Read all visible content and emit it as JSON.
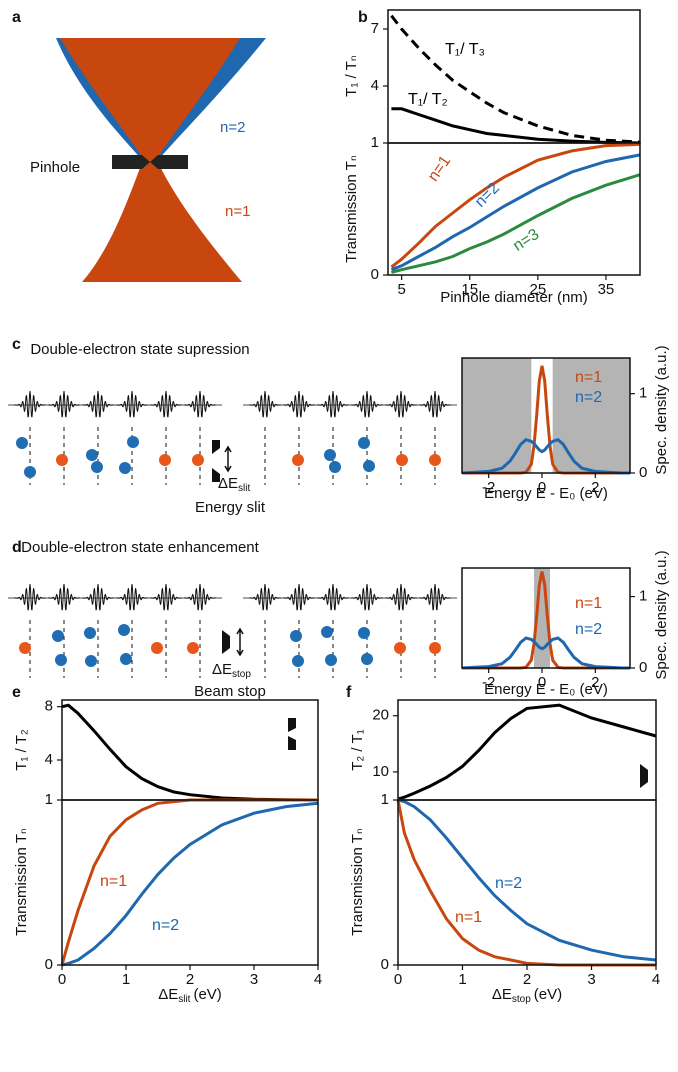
{
  "panels": {
    "a": {
      "label": "a",
      "pinhole": "Pinhole",
      "n2": "n=2",
      "n1": "n=1"
    },
    "b": {
      "label": "b"
    },
    "c": {
      "label": "c",
      "title": "Double-electron state supression",
      "delta": "ΔE",
      "delta_sub": "slit",
      "caption": "Energy slit"
    },
    "d": {
      "label": "d",
      "title": "Double-electron state enhancement",
      "delta": "ΔE",
      "delta_sub": "stop",
      "caption": "Beam stop"
    },
    "e": {
      "label": "e"
    },
    "f": {
      "label": "f"
    }
  },
  "chart_data": [
    {
      "type": "line",
      "ylabel": "T₁ / Tₙ",
      "xlim": [
        3,
        40
      ],
      "ylim": [
        1,
        8
      ],
      "yticks": [
        4,
        7
      ],
      "x": [
        3.5,
        5,
        7.5,
        10,
        12.5,
        15,
        17.5,
        20,
        25,
        30,
        35,
        40
      ],
      "series": [
        {
          "name": "T₁/ T₃",
          "color": "#000000",
          "dashed": true,
          "values": [
            7.7,
            7.0,
            6.0,
            5.1,
            4.3,
            3.7,
            3.1,
            2.6,
            1.9,
            1.4,
            1.15,
            1.05
          ]
        },
        {
          "name": "T₁/ T₂",
          "color": "#000000",
          "values": [
            2.8,
            2.8,
            2.5,
            2.2,
            1.9,
            1.7,
            1.5,
            1.4,
            1.2,
            1.1,
            1.03,
            1.0
          ]
        }
      ]
    },
    {
      "type": "line",
      "ylabel": "Transmission Tₙ",
      "xlabel": "Pinhole diameter (nm)",
      "xlim": [
        3,
        40
      ],
      "ylim": [
        0,
        1
      ],
      "xticks": [
        5,
        15,
        25,
        35
      ],
      "yticks": [
        0,
        1
      ],
      "x": [
        3.5,
        5,
        7.5,
        10,
        12.5,
        15,
        17.5,
        20,
        25,
        30,
        35,
        40
      ],
      "series": [
        {
          "name": "n=1",
          "color": "#c8470f",
          "values": [
            0.06,
            0.12,
            0.24,
            0.37,
            0.47,
            0.57,
            0.66,
            0.74,
            0.87,
            0.94,
            0.98,
            0.99
          ]
        },
        {
          "name": "n=2",
          "color": "#1f68b0",
          "values": [
            0.04,
            0.07,
            0.14,
            0.21,
            0.29,
            0.36,
            0.44,
            0.52,
            0.66,
            0.78,
            0.86,
            0.91
          ]
        },
        {
          "name": "n=3",
          "color": "#2a8a3e",
          "values": [
            0.02,
            0.04,
            0.07,
            0.1,
            0.14,
            0.2,
            0.25,
            0.31,
            0.45,
            0.58,
            0.68,
            0.76
          ]
        }
      ]
    },
    {
      "type": "line",
      "ylabel": "Spec. density (a.u.)",
      "xlabel": "Energy E - E₀ (eV)",
      "xlim": [
        -3,
        3.3
      ],
      "ylim": [
        0,
        1.45
      ],
      "xticks": [
        -2,
        0,
        2
      ],
      "yticks": [
        0,
        1
      ],
      "shaded": [
        [
          -3,
          -0.4
        ],
        [
          0.4,
          3.3
        ]
      ],
      "x": [
        -3,
        -2.5,
        -2,
        -1.5,
        -1.2,
        -1,
        -0.8,
        -0.6,
        -0.4,
        -0.3,
        -0.2,
        -0.1,
        0,
        0.1,
        0.2,
        0.3,
        0.4,
        0.6,
        0.8,
        1,
        1.2,
        1.5,
        2,
        2.5,
        3,
        3.3
      ],
      "series": [
        {
          "name": "n=1",
          "color": "#c8470f",
          "values": [
            0,
            0,
            0,
            0,
            0,
            0,
            0,
            0.01,
            0.11,
            0.34,
            0.73,
            1.16,
            1.35,
            1.16,
            0.73,
            0.34,
            0.11,
            0.01,
            0,
            0,
            0,
            0,
            0,
            0,
            0,
            0
          ]
        },
        {
          "name": "n=2",
          "color": "#1f68b0",
          "values": [
            0,
            0.01,
            0.02,
            0.06,
            0.15,
            0.25,
            0.36,
            0.42,
            0.4,
            0.37,
            0.33,
            0.29,
            0.27,
            0.29,
            0.33,
            0.37,
            0.4,
            0.42,
            0.36,
            0.25,
            0.15,
            0.06,
            0.02,
            0.01,
            0,
            0
          ]
        }
      ]
    },
    {
      "type": "line",
      "ylabel": "Spec. density (a.u.)",
      "xlabel": "Energy E - E₀ (eV)",
      "xlim": [
        -3,
        3.3
      ],
      "ylim": [
        0,
        1.4
      ],
      "xticks": [
        -2,
        0,
        2
      ],
      "yticks": [
        0,
        1
      ],
      "shaded": [
        [
          -0.3,
          0.3
        ]
      ],
      "x": [
        -3,
        -2.5,
        -2,
        -1.5,
        -1.2,
        -1,
        -0.8,
        -0.6,
        -0.4,
        -0.3,
        -0.2,
        -0.1,
        0,
        0.1,
        0.2,
        0.3,
        0.4,
        0.6,
        0.8,
        1,
        1.2,
        1.5,
        2,
        2.5,
        3,
        3.3
      ],
      "series": [
        {
          "name": "n=1",
          "color": "#c8470f",
          "values": [
            0,
            0,
            0,
            0,
            0,
            0,
            0,
            0.01,
            0.11,
            0.34,
            0.73,
            1.16,
            1.35,
            1.16,
            0.73,
            0.34,
            0.11,
            0.01,
            0,
            0,
            0,
            0,
            0,
            0,
            0,
            0
          ]
        },
        {
          "name": "n=2",
          "color": "#1f68b0",
          "values": [
            0,
            0.01,
            0.02,
            0.06,
            0.15,
            0.25,
            0.36,
            0.42,
            0.4,
            0.37,
            0.33,
            0.29,
            0.27,
            0.29,
            0.33,
            0.37,
            0.4,
            0.42,
            0.36,
            0.25,
            0.15,
            0.06,
            0.02,
            0.01,
            0,
            0
          ]
        }
      ]
    },
    {
      "type": "line",
      "ylabel": "T₁ / T₂",
      "xlim": [
        0,
        4
      ],
      "ylim": [
        1,
        8.5
      ],
      "yticks": [
        4,
        8
      ],
      "x": [
        0,
        0.1,
        0.25,
        0.5,
        0.75,
        1,
        1.25,
        1.5,
        1.75,
        2,
        2.5,
        3,
        3.5,
        4
      ],
      "series": [
        {
          "color": "#000000",
          "values": [
            8.0,
            8.1,
            7.5,
            6.2,
            4.8,
            3.5,
            2.6,
            2.0,
            1.6,
            1.4,
            1.15,
            1.05,
            1.02,
            1.0
          ]
        }
      ]
    },
    {
      "type": "line",
      "ylabel": "Transmission Tₙ",
      "xlabel": "ΔE",
      "xlabel_sub": "slit",
      "xlabel_unit": "(eV)",
      "xlim": [
        0,
        4
      ],
      "ylim": [
        0,
        1
      ],
      "xticks": [
        0,
        1,
        2,
        3,
        4
      ],
      "yticks": [
        0,
        1
      ],
      "x": [
        0,
        0.1,
        0.25,
        0.5,
        0.75,
        1,
        1.25,
        1.5,
        1.75,
        2,
        2.5,
        3,
        3.5,
        4
      ],
      "series": [
        {
          "name": "n=1",
          "color": "#c8470f",
          "values": [
            0,
            0.14,
            0.33,
            0.6,
            0.78,
            0.88,
            0.94,
            0.98,
            0.99,
            1,
            1,
            1,
            1,
            1
          ]
        },
        {
          "name": "n=2",
          "color": "#1f68b0",
          "values": [
            0,
            0.01,
            0.03,
            0.1,
            0.19,
            0.3,
            0.43,
            0.55,
            0.65,
            0.73,
            0.85,
            0.92,
            0.96,
            0.98
          ]
        }
      ]
    },
    {
      "type": "line",
      "ylabel": "T₂ / T₁",
      "xlim": [
        0,
        4
      ],
      "ylim": [
        5,
        22.8
      ],
      "yticks": [
        10,
        20
      ],
      "x": [
        0,
        0.1,
        0.25,
        0.5,
        0.75,
        1,
        1.25,
        1.5,
        1.75,
        2,
        2.5,
        3,
        3.5,
        4
      ],
      "series": [
        {
          "color": "#000000",
          "values": [
            5.2,
            5.5,
            6.2,
            7.5,
            9,
            11,
            13.8,
            17,
            19.5,
            21.3,
            21.9,
            19.6,
            18,
            16.4
          ]
        }
      ]
    },
    {
      "type": "line",
      "ylabel": "Transmission Tₙ",
      "xlabel": "ΔE",
      "xlabel_sub": "stop",
      "xlabel_unit": "(eV)",
      "xlim": [
        0,
        4
      ],
      "ylim": [
        0,
        1
      ],
      "xticks": [
        0,
        1,
        2,
        3,
        4
      ],
      "yticks": [
        0,
        1
      ],
      "x": [
        0,
        0.1,
        0.25,
        0.5,
        0.75,
        1,
        1.25,
        1.5,
        1.75,
        2,
        2.5,
        3,
        3.5,
        4
      ],
      "series": [
        {
          "name": "n=1",
          "color": "#c8470f",
          "values": [
            1,
            0.8,
            0.64,
            0.45,
            0.28,
            0.16,
            0.09,
            0.05,
            0.03,
            0.01,
            0,
            0,
            0,
            0
          ]
        },
        {
          "name": "n=2",
          "color": "#1f68b0",
          "values": [
            1,
            0.99,
            0.96,
            0.88,
            0.77,
            0.65,
            0.53,
            0.42,
            0.33,
            0.25,
            0.15,
            0.09,
            0.05,
            0.03
          ]
        }
      ]
    }
  ]
}
